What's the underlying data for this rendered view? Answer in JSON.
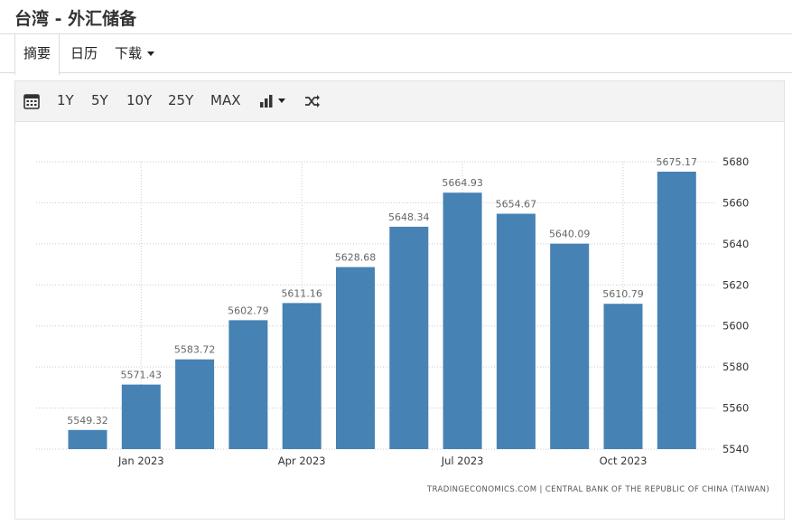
{
  "page": {
    "title": "台湾 - 外汇储备"
  },
  "tabs": [
    {
      "label": "摘要",
      "active": true
    },
    {
      "label": "日历",
      "active": false
    },
    {
      "label": "下载",
      "active": false
    }
  ],
  "toolbar": {
    "calendar_icon": "calendar-icon",
    "ranges": [
      "1Y",
      "5Y",
      "10Y",
      "25Y",
      "MAX"
    ],
    "chart_type_icon": "bar-chart-icon",
    "shuffle_icon": "shuffle-icon"
  },
  "colors": {
    "bar": "#4682b4",
    "grid": "#cccccc"
  },
  "chart_data": {
    "type": "bar",
    "x": [
      "2022-12",
      "2023-01",
      "2023-02",
      "2023-03",
      "2023-04",
      "2023-05",
      "2023-06",
      "2023-07",
      "2023-08",
      "2023-09",
      "2023-10",
      "2023-11"
    ],
    "values": [
      5549.32,
      5571.43,
      5583.72,
      5602.79,
      5611.16,
      5628.68,
      5648.34,
      5664.93,
      5654.67,
      5640.09,
      5610.79,
      5675.17
    ],
    "value_labels": [
      "5549.32",
      "5571.43",
      "5583.72",
      "5602.79",
      "5611.16",
      "5628.68",
      "5648.34",
      "5664.93",
      "5654.67",
      "5640.09",
      "5610.79",
      "5675.17"
    ],
    "x_tick_labels": [
      {
        "index": 1,
        "label": "Jan 2023"
      },
      {
        "index": 4,
        "label": "Apr 2023"
      },
      {
        "index": 7,
        "label": "Jul 2023"
      },
      {
        "index": 10,
        "label": "Oct 2023"
      }
    ],
    "y_ticks": [
      "5540",
      "5560",
      "5580",
      "5600",
      "5620",
      "5640",
      "5660",
      "5680"
    ],
    "ylim": [
      5540,
      5680
    ],
    "y_axis_position": "right",
    "grid": true,
    "source": "TRADINGECONOMICS.COM | CENTRAL BANK OF THE REPUBLIC OF CHINA (TAIWAN)"
  }
}
